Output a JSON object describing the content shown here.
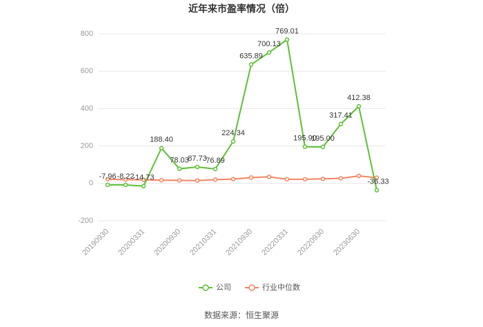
{
  "chart_data": {
    "type": "line",
    "title": "近年来市盈率情况（倍）",
    "categories": [
      "20190930",
      null,
      "20200331",
      null,
      "20200930",
      null,
      "20210331",
      null,
      "20210930",
      null,
      "20220331",
      null,
      "20220930",
      null,
      "20230630",
      null
    ],
    "series": [
      {
        "name": "公司",
        "color": "#5dbf34",
        "values": [
          -7.96,
          -8.22,
          -14.73,
          188.4,
          78.03,
          87.73,
          76.89,
          224.34,
          635.89,
          700.13,
          769.01,
          195.9,
          195.0,
          317.41,
          412.38,
          -36.33
        ],
        "value_labels": [
          "-7.96",
          "-8.22",
          "-14.73",
          "188.40",
          "78.03",
          "87.73",
          "76.89",
          "224.34",
          "635.89",
          "700.13",
          "769.01",
          "195.90",
          "195.00",
          "317.41",
          "412.38",
          "-36.33"
        ]
      },
      {
        "name": "行业中位数",
        "color": "#f4845f",
        "values": [
          22,
          20,
          19,
          17,
          16,
          15,
          20,
          23,
          31,
          35,
          22,
          22,
          24,
          27,
          40,
          30
        ]
      }
    ],
    "ylim": [
      -200,
      800
    ],
    "yticks": [
      -200,
      0,
      200,
      400,
      600,
      800
    ],
    "grid": true,
    "legend": "bottom",
    "source": "数据来源：恒生聚源"
  }
}
